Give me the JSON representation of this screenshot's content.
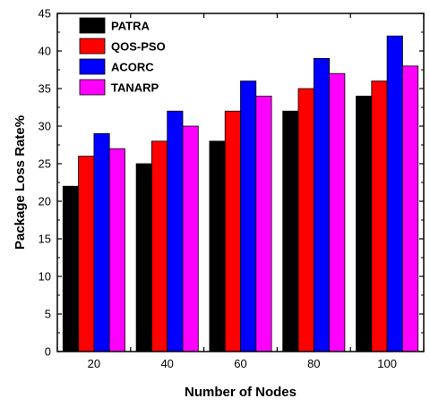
{
  "chart_data": {
    "type": "bar",
    "xlabel": "Number of Nodes",
    "ylabel": "Package Loss Rate%",
    "categories": [
      "20",
      "40",
      "60",
      "80",
      "100"
    ],
    "ylim": [
      0,
      45
    ],
    "yticks": [
      0,
      5,
      10,
      15,
      20,
      25,
      30,
      35,
      40,
      45
    ],
    "grid": false,
    "legend_position": "top-left",
    "series": [
      {
        "name": "PATRA",
        "color": "#000000",
        "values": [
          22,
          25,
          28,
          32,
          34
        ]
      },
      {
        "name": "QOS-PSO",
        "color": "#ff0000",
        "values": [
          26,
          28,
          32,
          35,
          36
        ]
      },
      {
        "name": "ACORC",
        "color": "#0000ff",
        "values": [
          29,
          32,
          36,
          39,
          42
        ]
      },
      {
        "name": "TANARP",
        "color": "#ff00ff",
        "values": [
          27,
          30,
          34,
          37,
          38
        ]
      }
    ]
  }
}
